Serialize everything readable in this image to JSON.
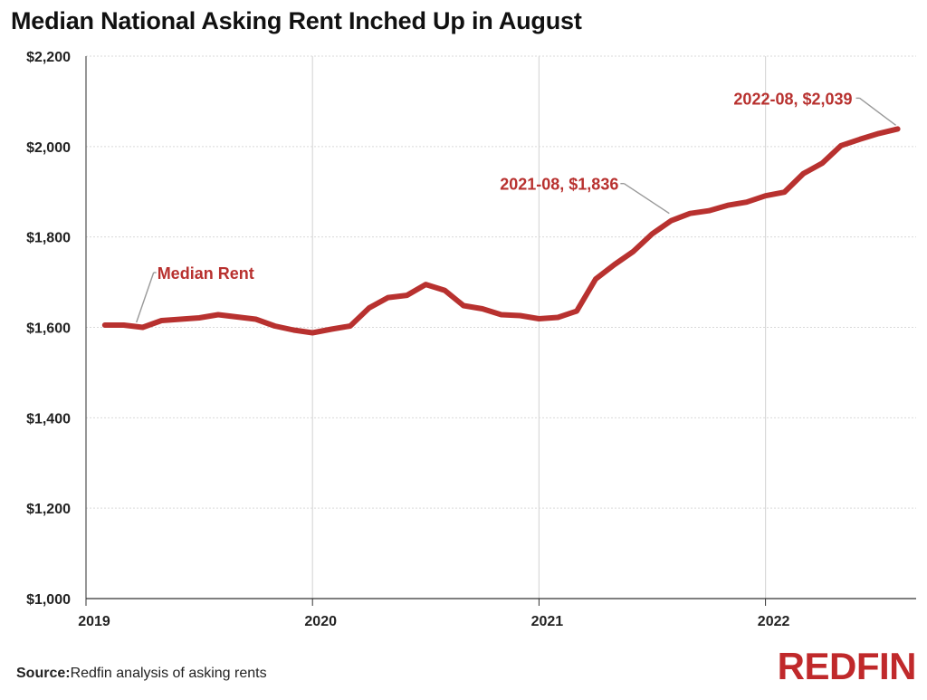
{
  "title": "Median National Asking Rent Inched Up in August",
  "source": {
    "label": "Source:",
    "text": "Redfin analysis of asking rents"
  },
  "brand": "REDFIN",
  "colors": {
    "line": "#b8312f",
    "annotation": "#b8312f",
    "brand": "#c0292b",
    "grid": "#d9d9d9"
  },
  "chart_data": {
    "type": "line",
    "title": "Median National Asking Rent Inched Up in August",
    "xlabel": "",
    "ylabel": "",
    "ylim": [
      1000,
      2200
    ],
    "yticks": [
      1000,
      1200,
      1400,
      1600,
      1800,
      2000,
      2200
    ],
    "ytick_labels": [
      "$1,000",
      "$1,200",
      "$1,400",
      "$1,600",
      "$1,800",
      "$2,000",
      "$2,200"
    ],
    "xticks": [
      "2019",
      "2020",
      "2021",
      "2022"
    ],
    "grid": {
      "y": true,
      "x": true
    },
    "series": [
      {
        "name": "Median Rent",
        "x": [
          "2019-02",
          "2019-03",
          "2019-04",
          "2019-05",
          "2019-06",
          "2019-07",
          "2019-08",
          "2019-09",
          "2019-10",
          "2019-11",
          "2019-12",
          "2020-01",
          "2020-02",
          "2020-03",
          "2020-04",
          "2020-05",
          "2020-06",
          "2020-07",
          "2020-08",
          "2020-09",
          "2020-10",
          "2020-11",
          "2020-12",
          "2021-01",
          "2021-02",
          "2021-03",
          "2021-04",
          "2021-05",
          "2021-06",
          "2021-07",
          "2021-08",
          "2021-09",
          "2021-10",
          "2021-11",
          "2021-12",
          "2022-01",
          "2022-02",
          "2022-03",
          "2022-04",
          "2022-05",
          "2022-06",
          "2022-07",
          "2022-08"
        ],
        "values": [
          1605,
          1605,
          1600,
          1615,
          1618,
          1621,
          1628,
          1623,
          1618,
          1603,
          1594,
          1588,
          1596,
          1603,
          1643,
          1666,
          1671,
          1695,
          1682,
          1648,
          1641,
          1628,
          1626,
          1619,
          1622,
          1636,
          1707,
          1739,
          1768,
          1807,
          1836,
          1852,
          1858,
          1870,
          1877,
          1891,
          1899,
          1940,
          1963,
          2002,
          2016,
          2029,
          2039
        ]
      }
    ],
    "annotations": [
      {
        "text": "Median Rent",
        "x": "2019-03",
        "y": 1605
      },
      {
        "text": "2021-08, $1,836",
        "x": "2021-08",
        "y": 1836
      },
      {
        "text": "2022-08, $2,039",
        "x": "2022-08",
        "y": 2039
      }
    ]
  }
}
